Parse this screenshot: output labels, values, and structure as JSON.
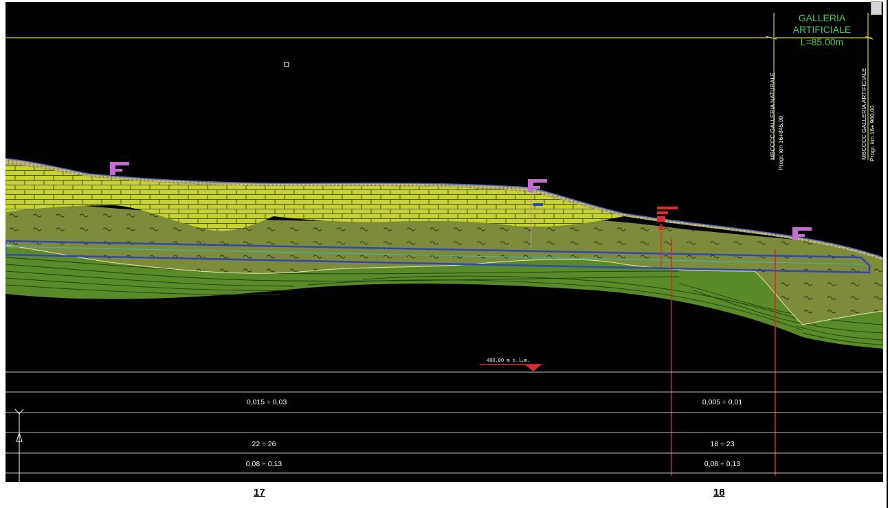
{
  "header": {
    "galleria_title_line1": "GALLERIA",
    "galleria_title_line2": "ARTIFICIALE",
    "galleria_length": "L=85.00m",
    "left_marker_label": "MBCCCC GALLERIA NATURALE",
    "left_marker_prog": "Progr. km 16+845,00",
    "right_marker_label": "MBCCCC GALLERIA ARTIFICIALE",
    "right_marker_prog": "Progr. km 16+ 980,00"
  },
  "datum": {
    "label": "400.00 m s.l.m."
  },
  "bottom_table": {
    "rows": [
      {
        "left": "0,015 ÷ 0,03",
        "right": "0,005 ÷ 0,01"
      },
      {
        "left": "",
        "right": ""
      },
      {
        "left": "22 ÷ 26",
        "right": "18 ÷ 23"
      },
      {
        "left": "0,08 ÷ 0,13",
        "right": "0,08 ÷ 0,13"
      }
    ]
  },
  "page_numbers": {
    "left": "17",
    "right": "18"
  },
  "colors": {
    "background": "#000000",
    "limestone": "#c9d62a",
    "marl": "#7c8c3a",
    "flysch": "#5f8a2a",
    "tunnel": "#2f44b5",
    "section_line": "#d8242a",
    "annotation": "#c66bd0",
    "header_text": "#3fcf5a",
    "guide_line": "#e0e020"
  }
}
